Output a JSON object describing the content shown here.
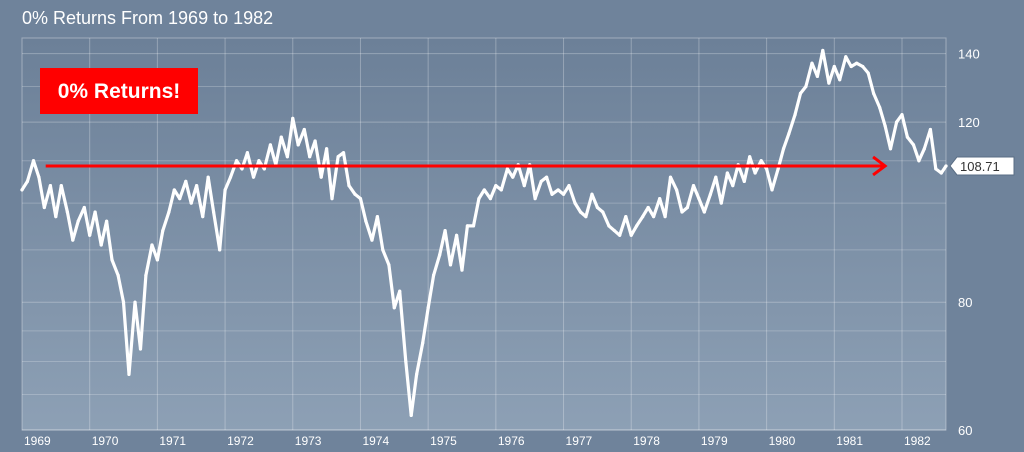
{
  "chart_data": {
    "type": "line",
    "title": "0% Returns From 1969 to 1982",
    "y_scale": "log",
    "ylim": [
      60,
      145
    ],
    "xlim": [
      1969.0,
      1982.65
    ],
    "y_ticks": [
      60,
      80,
      120,
      140
    ],
    "y_minor_gridlines": [
      65,
      70,
      75,
      90,
      100,
      110,
      130
    ],
    "x_ticks": [
      {
        "label": "1969",
        "value": 1969
      },
      {
        "label": "1970",
        "value": 1970
      },
      {
        "label": "1971",
        "value": 1971
      },
      {
        "label": "1972",
        "value": 1972
      },
      {
        "label": "1973",
        "value": 1973
      },
      {
        "label": "1974",
        "value": 1974
      },
      {
        "label": "1975",
        "value": 1975
      },
      {
        "label": "1976",
        "value": 1976
      },
      {
        "label": "1977",
        "value": 1977
      },
      {
        "label": "1978",
        "value": 1978
      },
      {
        "label": "1979",
        "value": 1979
      },
      {
        "label": "1980",
        "value": 1980
      },
      {
        "label": "1981",
        "value": 1981
      },
      {
        "label": "1982",
        "value": 1982
      }
    ],
    "grid": true,
    "last_value_label": "108.71",
    "annotation": {
      "text": "0% Returns!",
      "background": "#ff0000",
      "arrow_y": 108.71,
      "arrow_x": [
        1969.35,
        1981.75
      ],
      "arrow_color": "#ff0000"
    },
    "colors": {
      "line": "#ffffff",
      "background": "#6f839b"
    },
    "series": [
      {
        "x": [
          1969.0,
          1969.08,
          1969.17,
          1969.25,
          1969.33,
          1969.42,
          1969.5,
          1969.58,
          1969.67,
          1969.75,
          1969.83,
          1969.92,
          1970.0,
          1970.08,
          1970.17,
          1970.25,
          1970.33,
          1970.42,
          1970.5,
          1970.58,
          1970.67,
          1970.75,
          1970.83,
          1970.92,
          1971.0,
          1971.08,
          1971.17,
          1971.25,
          1971.33,
          1971.42,
          1971.5,
          1971.58,
          1971.67,
          1971.75,
          1971.83,
          1971.92,
          1972.0,
          1972.08,
          1972.17,
          1972.25,
          1972.33,
          1972.42,
          1972.5,
          1972.58,
          1972.67,
          1972.75,
          1972.83,
          1972.92,
          1973.0,
          1973.08,
          1973.17,
          1973.25,
          1973.33,
          1973.42,
          1973.5,
          1973.58,
          1973.67,
          1973.75,
          1973.83,
          1973.92,
          1974.0,
          1974.08,
          1974.17,
          1974.25,
          1974.33,
          1974.42,
          1974.5,
          1974.58,
          1974.67,
          1974.75,
          1974.83,
          1974.92,
          1975.0,
          1975.08,
          1975.17,
          1975.25,
          1975.33,
          1975.42,
          1975.5,
          1975.58,
          1975.67,
          1975.75,
          1975.83,
          1975.92,
          1976.0,
          1976.08,
          1976.17,
          1976.25,
          1976.33,
          1976.42,
          1976.5,
          1976.58,
          1976.67,
          1976.75,
          1976.83,
          1976.92,
          1977.0,
          1977.08,
          1977.17,
          1977.25,
          1977.33,
          1977.42,
          1977.5,
          1977.58,
          1977.67,
          1977.75,
          1977.83,
          1977.92,
          1978.0,
          1978.08,
          1978.17,
          1978.25,
          1978.33,
          1978.42,
          1978.5,
          1978.58,
          1978.67,
          1978.75,
          1978.83,
          1978.92,
          1979.0,
          1979.08,
          1979.17,
          1979.25,
          1979.33,
          1979.42,
          1979.5,
          1979.58,
          1979.67,
          1979.75,
          1979.83,
          1979.92,
          1980.0,
          1980.08,
          1980.17,
          1980.25,
          1980.33,
          1980.42,
          1980.5,
          1980.58,
          1980.67,
          1980.75,
          1980.83,
          1980.92,
          1981.0,
          1981.08,
          1981.17,
          1981.25,
          1981.33,
          1981.42,
          1981.5,
          1981.58,
          1981.67,
          1981.75,
          1981.83,
          1981.92,
          1982.0,
          1982.08,
          1982.17,
          1982.25,
          1982.33,
          1982.42,
          1982.5,
          1982.58,
          1982.65
        ],
        "y": [
          103,
          105,
          110,
          106,
          99,
          104,
          97,
          104,
          98,
          92,
          96,
          99,
          93,
          98,
          91,
          96,
          88,
          85,
          80,
          68,
          80,
          72,
          85,
          91,
          88,
          94,
          98,
          103,
          101,
          105,
          100,
          104,
          97,
          106,
          98,
          90,
          103,
          106,
          110,
          108,
          112,
          106,
          110,
          108,
          114,
          109,
          116,
          111,
          121,
          114,
          118,
          111,
          115,
          106,
          113,
          101,
          111,
          112,
          104,
          102,
          101,
          96,
          92,
          97,
          90,
          87,
          79,
          82,
          70,
          62,
          68,
          73,
          79,
          85,
          89,
          94,
          87,
          93,
          86,
          95,
          95,
          101,
          103,
          101,
          104,
          103,
          108,
          106,
          109,
          104,
          109,
          101,
          105,
          106,
          102,
          103,
          102,
          104,
          100,
          98,
          97,
          102,
          99,
          98,
          95,
          94,
          93,
          97,
          93,
          95,
          97,
          99,
          97,
          101,
          97,
          106,
          103,
          98,
          99,
          104,
          101,
          98,
          102,
          106,
          100,
          107,
          104,
          109,
          105,
          111,
          107,
          110,
          108,
          103,
          108,
          113,
          117,
          122,
          128,
          130,
          137,
          133,
          141,
          131,
          136,
          132,
          139,
          136,
          137,
          136,
          134,
          128,
          124,
          119,
          113,
          120,
          122,
          116,
          114,
          110,
          113,
          118,
          108,
          107,
          108.71
        ]
      }
    ]
  }
}
